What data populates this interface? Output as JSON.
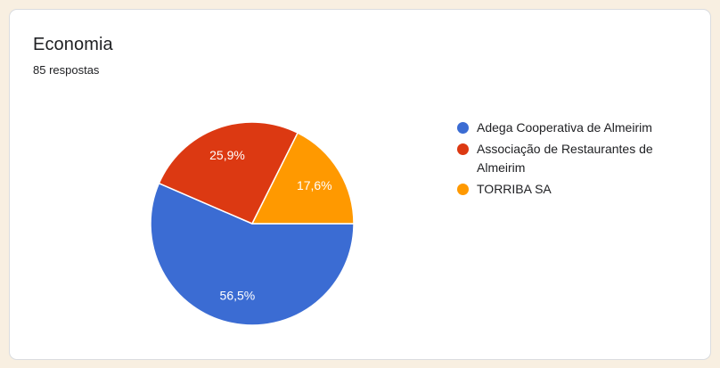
{
  "theme": {
    "page_background": "#f8efe1",
    "card_background": "#ffffff",
    "card_border": "#dadce0",
    "text_color": "#202124",
    "slice_label_color": "#ffffff",
    "slice_border_color": "#ffffff"
  },
  "chart_data": {
    "type": "pie",
    "title": "Economia",
    "subtitle": "85 respostas",
    "categories": [
      "Adega Cooperativa de Almeirim",
      "Associação de Restaurantes de Almeirim",
      "TORRIBA SA"
    ],
    "values": [
      56.5,
      25.9,
      17.6
    ],
    "value_labels": [
      "56,5%",
      "25,9%",
      "17,6%"
    ],
    "colors": [
      "#3b6cd3",
      "#dc3912",
      "#ff9900"
    ],
    "legend_position": "right",
    "start_angle_deg": 0,
    "direction": "clockwise"
  }
}
